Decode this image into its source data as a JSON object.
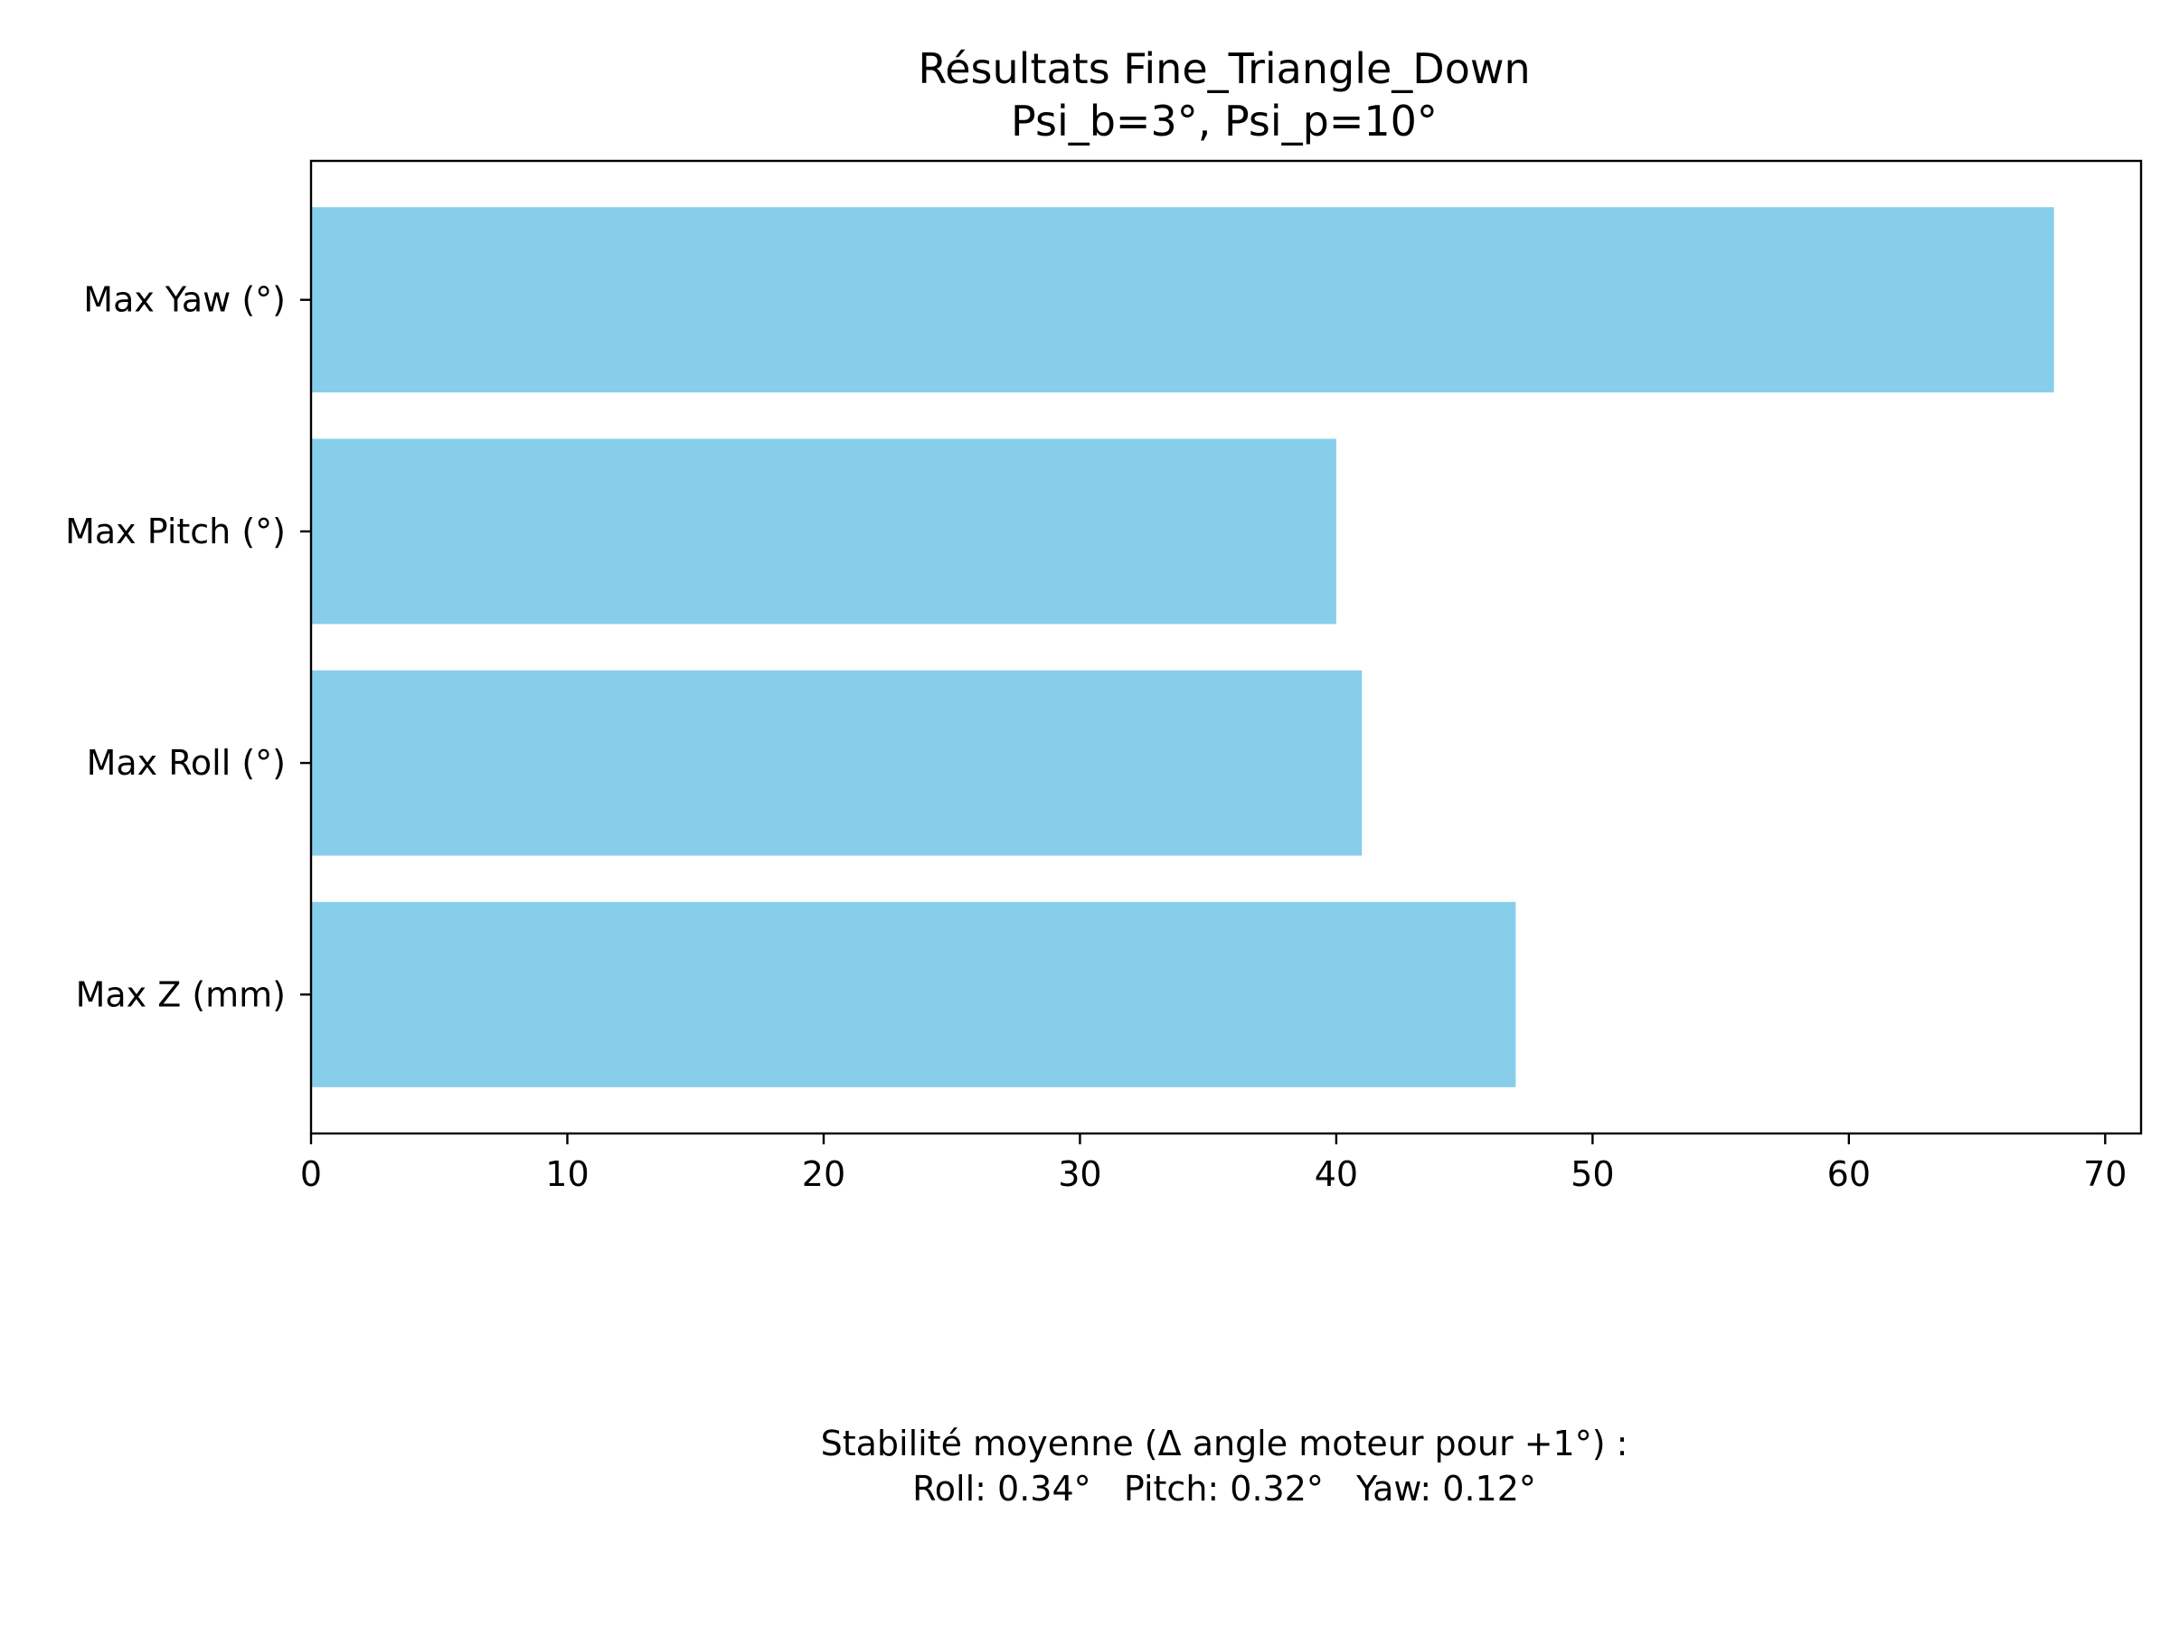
{
  "chart_data": {
    "type": "bar",
    "orientation": "horizontal",
    "title": "Résultats Fine_Triangle_Down",
    "subtitle": "Psi_b=3°, Psi_p=10°",
    "xlabel": "",
    "ylabel": "",
    "categories": [
      "Max Yaw (°)",
      "Max Pitch (°)",
      "Max Roll (°)",
      "Max Z (mm)"
    ],
    "values": [
      68,
      40,
      41,
      47
    ],
    "xlim": [
      0,
      71.4
    ],
    "xticks": [
      0,
      10,
      20,
      30,
      40,
      50,
      60,
      70
    ],
    "grid": false,
    "bar_color": "#87CEEB",
    "annotation": {
      "line1": "Stabilité moyenne (Δ angle moteur pour +1°) :",
      "line2": "Roll: 0.34°   Pitch: 0.32°   Yaw: 0.12°"
    }
  }
}
